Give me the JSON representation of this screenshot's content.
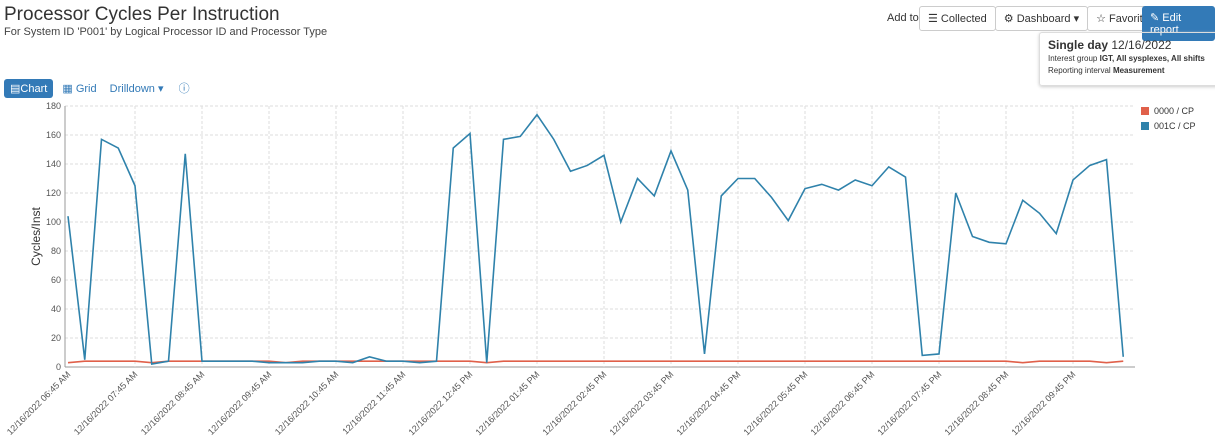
{
  "header": {
    "title": "Processor Cycles Per Instruction",
    "subtitle": "For System ID 'P001' by Logical Processor ID and Processor Type"
  },
  "add_to": {
    "label": "Add to:",
    "buttons": [
      "Collected",
      "Dashboard",
      "Favorites"
    ],
    "edit": "Edit report"
  },
  "info": {
    "period": "Single day",
    "date": "12/16/2022",
    "interest_label": "Interest group",
    "interest": "IGT, All sysplexes, All shifts",
    "interval_label": "Reporting interval",
    "interval": "Measurement"
  },
  "toolbar": [
    "Chart",
    "Grid",
    "Drilldown"
  ],
  "chart_data": {
    "type": "line",
    "y_label": "Cycles/Inst",
    "categories": [
      "12/16/2022 06:45 AM",
      null,
      null,
      null,
      "12/16/2022 07:45 AM",
      null,
      null,
      null,
      "12/16/2022 08:45 AM",
      null,
      null,
      null,
      "12/16/2022 09:45 AM",
      null,
      null,
      null,
      "12/16/2022 10:45 AM",
      null,
      null,
      null,
      "12/16/2022 11:45 AM",
      null,
      null,
      null,
      "12/16/2022 12:45 PM",
      null,
      null,
      null,
      "12/16/2022 01:45 PM",
      null,
      null,
      null,
      "12/16/2022 02:45 PM",
      null,
      null,
      null,
      "12/16/2022 03:45 PM",
      null,
      null,
      null,
      "12/16/2022 04:45 PM",
      null,
      null,
      null,
      "12/16/2022 05:45 PM",
      null,
      null,
      null,
      "12/16/2022 06:45 PM",
      null,
      null,
      null,
      "12/16/2022 07:45 PM",
      null,
      null,
      null,
      "12/16/2022 08:45 PM",
      null,
      null,
      null,
      "12/16/2022 09:45 PM",
      null,
      null,
      null
    ],
    "series": [
      {
        "name": "0000 / CP",
        "color": "#e0604a",
        "values": [
          3,
          4,
          4,
          4,
          4,
          3,
          4,
          4,
          4,
          4,
          4,
          4,
          4,
          3,
          4,
          4,
          4,
          4,
          4,
          4,
          4,
          4,
          4,
          4,
          4,
          3,
          4,
          4,
          4,
          4,
          4,
          4,
          4,
          4,
          4,
          4,
          4,
          4,
          4,
          4,
          4,
          4,
          4,
          4,
          4,
          4,
          4,
          4,
          4,
          4,
          4,
          4,
          4,
          4,
          4,
          4,
          4,
          3,
          4,
          4,
          4,
          4,
          3,
          4
        ]
      },
      {
        "name": "001C / CP",
        "color": "#2f82ab",
        "values": [
          104,
          5,
          157,
          151,
          125,
          2,
          4,
          147,
          4,
          4,
          4,
          4,
          3,
          3,
          3,
          4,
          4,
          3,
          7,
          4,
          4,
          3,
          4,
          151,
          161,
          3,
          157,
          159,
          174,
          157,
          135,
          139,
          146,
          100,
          130,
          118,
          149,
          122,
          9,
          118,
          130,
          130,
          117,
          101,
          123,
          126,
          122,
          129,
          125,
          138,
          131,
          8,
          9,
          120,
          90,
          86,
          85,
          115,
          106,
          92,
          129,
          139,
          143,
          7
        ]
      }
    ],
    "ylim": [
      0,
      180
    ],
    "yticks": [
      0,
      20,
      40,
      60,
      80,
      100,
      120,
      140,
      160,
      180
    ],
    "grid": true,
    "legend": "top-right"
  }
}
